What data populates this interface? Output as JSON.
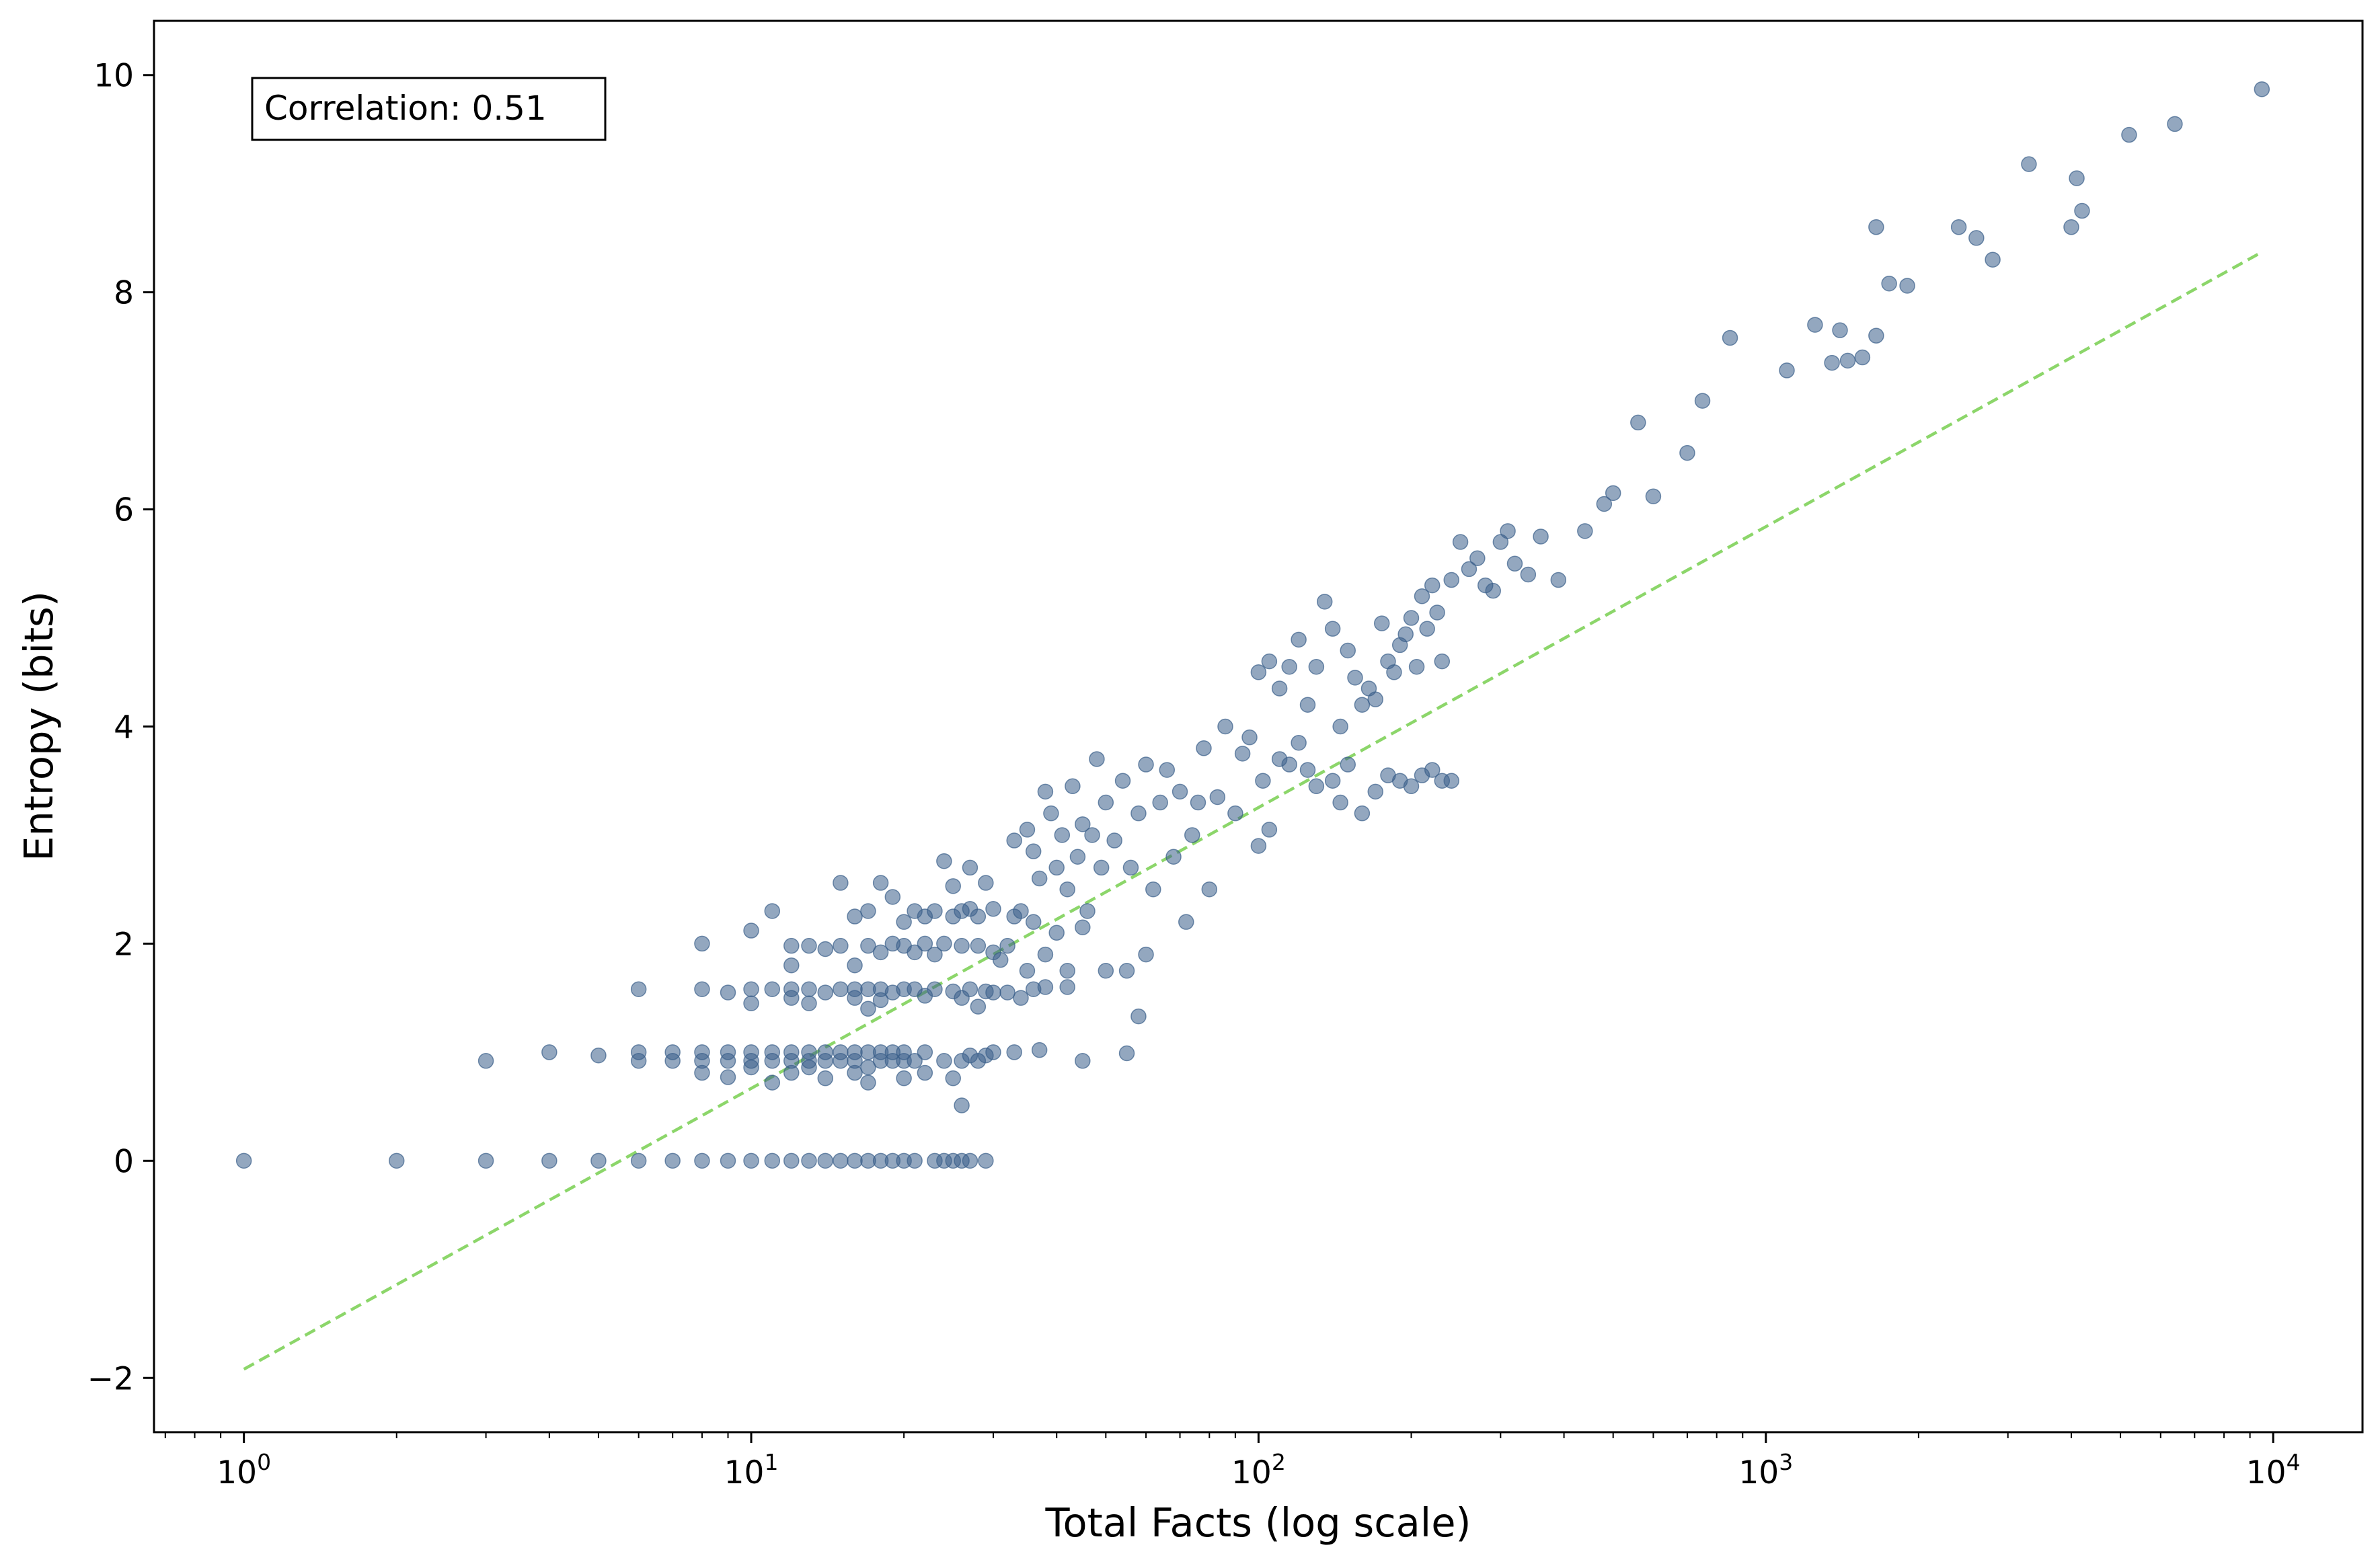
{
  "chart_data": {
    "type": "scatter",
    "xlabel": "Total Facts (log scale)",
    "ylabel": "Entropy (bits)",
    "xscale": "log",
    "xlim": [
      0.665,
      15000
    ],
    "ylim": [
      -2.5,
      10.5
    ],
    "x_ticks": [
      {
        "value": 1,
        "base": "10",
        "exp": "0"
      },
      {
        "value": 10,
        "base": "10",
        "exp": "1"
      },
      {
        "value": 100,
        "base": "10",
        "exp": "2"
      },
      {
        "value": 1000,
        "base": "10",
        "exp": "3"
      },
      {
        "value": 10000,
        "base": "10",
        "exp": "4"
      }
    ],
    "y_ticks": [
      {
        "value": -2,
        "label": "−2"
      },
      {
        "value": 0,
        "label": "0"
      },
      {
        "value": 2,
        "label": "2"
      },
      {
        "value": 4,
        "label": "4"
      },
      {
        "value": 6,
        "label": "6"
      },
      {
        "value": 8,
        "label": "8"
      },
      {
        "value": 10,
        "label": "10"
      }
    ],
    "grid": false,
    "annotation": "Correlation: 0.51",
    "point_color": "#3b5f8a",
    "fit_color": "#8cd66a",
    "fit_line": {
      "x": [
        1,
        9500
      ],
      "y": [
        -1.92,
        8.37
      ]
    },
    "points": [
      [
        1,
        0
      ],
      [
        2,
        0
      ],
      [
        3,
        0
      ],
      [
        4,
        0
      ],
      [
        5,
        0
      ],
      [
        6,
        0
      ],
      [
        7,
        0
      ],
      [
        8,
        0
      ],
      [
        9,
        0
      ],
      [
        10,
        0
      ],
      [
        11,
        0
      ],
      [
        12,
        0
      ],
      [
        13,
        0
      ],
      [
        14,
        0
      ],
      [
        15,
        0
      ],
      [
        16,
        0
      ],
      [
        17,
        0
      ],
      [
        18,
        0
      ],
      [
        19,
        0
      ],
      [
        20,
        0
      ],
      [
        21,
        0
      ],
      [
        23,
        0
      ],
      [
        24,
        0
      ],
      [
        25,
        0
      ],
      [
        26,
        0
      ],
      [
        27,
        0
      ],
      [
        29,
        0
      ],
      [
        3,
        0.92
      ],
      [
        4,
        1.0
      ],
      [
        5,
        0.97
      ],
      [
        6,
        0.92
      ],
      [
        6,
        1.0
      ],
      [
        7,
        0.92
      ],
      [
        7,
        1.0
      ],
      [
        8,
        0.92
      ],
      [
        8,
        1.0
      ],
      [
        8,
        0.81
      ],
      [
        9,
        0.92
      ],
      [
        9,
        1.0
      ],
      [
        9,
        0.77
      ],
      [
        10,
        0.86
      ],
      [
        10,
        0.92
      ],
      [
        10,
        1.0
      ],
      [
        11,
        0.72
      ],
      [
        11,
        0.92
      ],
      [
        11,
        1.0
      ],
      [
        12,
        0.81
      ],
      [
        12,
        0.92
      ],
      [
        12,
        1.0
      ],
      [
        13,
        0.86
      ],
      [
        13,
        0.92
      ],
      [
        13,
        1.0
      ],
      [
        14,
        0.76
      ],
      [
        14,
        0.92
      ],
      [
        14,
        1.0
      ],
      [
        15,
        0.92
      ],
      [
        15,
        1.0
      ],
      [
        16,
        0.81
      ],
      [
        16,
        0.92
      ],
      [
        16,
        1.0
      ],
      [
        17,
        0.72
      ],
      [
        17,
        0.86
      ],
      [
        17,
        1.0
      ],
      [
        18,
        0.92
      ],
      [
        18,
        1.0
      ],
      [
        19,
        0.92
      ],
      [
        19,
        1.0
      ],
      [
        20,
        0.92
      ],
      [
        20,
        1.0
      ],
      [
        20,
        0.76
      ],
      [
        21,
        0.92
      ],
      [
        22,
        0.81
      ],
      [
        22,
        1.0
      ],
      [
        24,
        0.92
      ],
      [
        25,
        0.76
      ],
      [
        26,
        0.51
      ],
      [
        26,
        0.92
      ],
      [
        27,
        0.97
      ],
      [
        28,
        0.92
      ],
      [
        29,
        0.97
      ],
      [
        30,
        1.0
      ],
      [
        33,
        1.0
      ],
      [
        37,
        1.02
      ],
      [
        45,
        0.92
      ],
      [
        55,
        0.99
      ],
      [
        6,
        1.58
      ],
      [
        8,
        1.58
      ],
      [
        9,
        1.55
      ],
      [
        10,
        1.45
      ],
      [
        10,
        1.58
      ],
      [
        11,
        1.58
      ],
      [
        12,
        1.5
      ],
      [
        12,
        1.58
      ],
      [
        13,
        1.45
      ],
      [
        13,
        1.58
      ],
      [
        14,
        1.55
      ],
      [
        15,
        1.58
      ],
      [
        16,
        1.5
      ],
      [
        16,
        1.58
      ],
      [
        17,
        1.4
      ],
      [
        17,
        1.58
      ],
      [
        18,
        1.48
      ],
      [
        18,
        1.58
      ],
      [
        19,
        1.55
      ],
      [
        20,
        1.58
      ],
      [
        21,
        1.58
      ],
      [
        22,
        1.52
      ],
      [
        23,
        1.58
      ],
      [
        25,
        1.56
      ],
      [
        26,
        1.5
      ],
      [
        27,
        1.58
      ],
      [
        28,
        1.42
      ],
      [
        29,
        1.56
      ],
      [
        30,
        1.55
      ],
      [
        32,
        1.55
      ],
      [
        34,
        1.5
      ],
      [
        36,
        1.58
      ],
      [
        38,
        1.6
      ],
      [
        42,
        1.6
      ],
      [
        58,
        1.33
      ],
      [
        8,
        2.0
      ],
      [
        10,
        2.12
      ],
      [
        11,
        2.3
      ],
      [
        12,
        1.98
      ],
      [
        12,
        1.8
      ],
      [
        13,
        1.98
      ],
      [
        14,
        1.95
      ],
      [
        15,
        1.98
      ],
      [
        15,
        2.56
      ],
      [
        16,
        1.8
      ],
      [
        16,
        2.25
      ],
      [
        17,
        1.98
      ],
      [
        17,
        2.3
      ],
      [
        18,
        1.92
      ],
      [
        18,
        2.56
      ],
      [
        19,
        2.0
      ],
      [
        19,
        2.43
      ],
      [
        20,
        1.98
      ],
      [
        20,
        2.2
      ],
      [
        21,
        1.92
      ],
      [
        21,
        2.3
      ],
      [
        22,
        2.0
      ],
      [
        22,
        2.25
      ],
      [
        23,
        2.3
      ],
      [
        23,
        1.9
      ],
      [
        24,
        2.0
      ],
      [
        24,
        2.76
      ],
      [
        25,
        2.53
      ],
      [
        25,
        2.25
      ],
      [
        26,
        1.98
      ],
      [
        26,
        2.3
      ],
      [
        27,
        2.32
      ],
      [
        27,
        2.7
      ],
      [
        28,
        1.98
      ],
      [
        28,
        2.25
      ],
      [
        29,
        2.56
      ],
      [
        30,
        1.92
      ],
      [
        30,
        2.32
      ],
      [
        31,
        1.85
      ],
      [
        32,
        1.98
      ],
      [
        33,
        2.25
      ],
      [
        34,
        2.3
      ],
      [
        35,
        1.75
      ],
      [
        36,
        2.2
      ],
      [
        38,
        1.9
      ],
      [
        40,
        2.1
      ],
      [
        42,
        1.75
      ],
      [
        45,
        2.15
      ],
      [
        50,
        1.75
      ],
      [
        55,
        1.75
      ],
      [
        60,
        1.9
      ],
      [
        33,
        2.95
      ],
      [
        35,
        3.05
      ],
      [
        36,
        2.85
      ],
      [
        37,
        2.6
      ],
      [
        38,
        3.4
      ],
      [
        39,
        3.2
      ],
      [
        40,
        2.7
      ],
      [
        41,
        3.0
      ],
      [
        42,
        2.5
      ],
      [
        43,
        3.45
      ],
      [
        44,
        2.8
      ],
      [
        45,
        3.1
      ],
      [
        46,
        2.3
      ],
      [
        47,
        3.0
      ],
      [
        48,
        3.7
      ],
      [
        49,
        2.7
      ],
      [
        50,
        3.3
      ],
      [
        52,
        2.95
      ],
      [
        54,
        3.5
      ],
      [
        56,
        2.7
      ],
      [
        58,
        3.2
      ],
      [
        60,
        3.65
      ],
      [
        62,
        2.5
      ],
      [
        64,
        3.3
      ],
      [
        66,
        3.6
      ],
      [
        68,
        2.8
      ],
      [
        70,
        3.4
      ],
      [
        72,
        2.2
      ],
      [
        74,
        3.0
      ],
      [
        76,
        3.3
      ],
      [
        78,
        3.8
      ],
      [
        80,
        2.5
      ],
      [
        83,
        3.35
      ],
      [
        86,
        4.0
      ],
      [
        90,
        3.2
      ],
      [
        93,
        3.75
      ],
      [
        96,
        3.9
      ],
      [
        100,
        2.9
      ],
      [
        102,
        3.5
      ],
      [
        105,
        3.05
      ],
      [
        110,
        3.7
      ],
      [
        115,
        3.65
      ],
      [
        120,
        3.85
      ],
      [
        125,
        3.6
      ],
      [
        130,
        3.45
      ],
      [
        140,
        3.5
      ],
      [
        145,
        3.3
      ],
      [
        150,
        3.65
      ],
      [
        160,
        3.2
      ],
      [
        170,
        3.4
      ],
      [
        180,
        3.55
      ],
      [
        190,
        3.5
      ],
      [
        200,
        3.45
      ],
      [
        210,
        3.55
      ],
      [
        220,
        3.6
      ],
      [
        230,
        3.5
      ],
      [
        240,
        3.5
      ],
      [
        100,
        4.5
      ],
      [
        105,
        4.6
      ],
      [
        110,
        4.35
      ],
      [
        115,
        4.55
      ],
      [
        120,
        4.8
      ],
      [
        125,
        4.2
      ],
      [
        130,
        4.55
      ],
      [
        135,
        5.15
      ],
      [
        140,
        4.9
      ],
      [
        145,
        4.0
      ],
      [
        150,
        4.7
      ],
      [
        155,
        4.45
      ],
      [
        160,
        4.2
      ],
      [
        165,
        4.35
      ],
      [
        170,
        4.25
      ],
      [
        175,
        4.95
      ],
      [
        180,
        4.6
      ],
      [
        185,
        4.5
      ],
      [
        190,
        4.75
      ],
      [
        195,
        4.85
      ],
      [
        200,
        5.0
      ],
      [
        205,
        4.55
      ],
      [
        210,
        5.2
      ],
      [
        215,
        4.9
      ],
      [
        220,
        5.3
      ],
      [
        225,
        5.05
      ],
      [
        230,
        4.6
      ],
      [
        240,
        5.35
      ],
      [
        250,
        5.7
      ],
      [
        260,
        5.45
      ],
      [
        270,
        5.55
      ],
      [
        280,
        5.3
      ],
      [
        290,
        5.25
      ],
      [
        300,
        5.7
      ],
      [
        310,
        5.8
      ],
      [
        320,
        5.5
      ],
      [
        340,
        5.4
      ],
      [
        360,
        5.75
      ],
      [
        390,
        5.35
      ],
      [
        440,
        5.8
      ],
      [
        480,
        6.05
      ],
      [
        500,
        6.15
      ],
      [
        560,
        6.8
      ],
      [
        600,
        6.12
      ],
      [
        700,
        6.52
      ],
      [
        750,
        7.0
      ],
      [
        850,
        7.58
      ],
      [
        1100,
        7.28
      ],
      [
        1250,
        7.7
      ],
      [
        1350,
        7.35
      ],
      [
        1400,
        7.65
      ],
      [
        1450,
        7.37
      ],
      [
        1550,
        7.4
      ],
      [
        1650,
        7.6
      ],
      [
        1650,
        8.6
      ],
      [
        1750,
        8.08
      ],
      [
        1900,
        8.06
      ],
      [
        2400,
        8.6
      ],
      [
        2600,
        8.5
      ],
      [
        2800,
        8.3
      ],
      [
        3300,
        9.18
      ],
      [
        4000,
        8.6
      ],
      [
        4100,
        9.05
      ],
      [
        4200,
        8.75
      ],
      [
        5200,
        9.45
      ],
      [
        6400,
        9.55
      ],
      [
        9500,
        9.87
      ]
    ]
  }
}
